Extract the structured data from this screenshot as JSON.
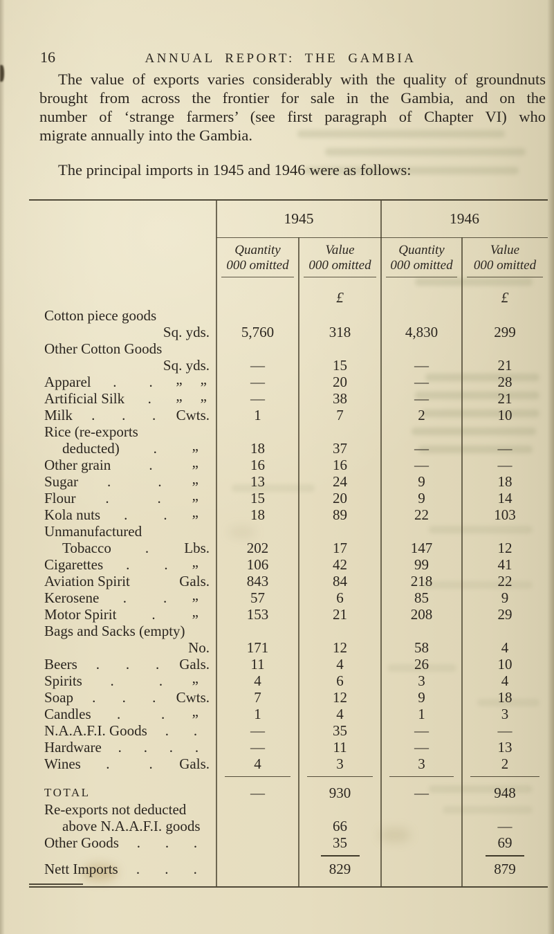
{
  "page": {
    "number": "16",
    "running_title": "ANNUAL REPORT: THE GAMBIA"
  },
  "intro": {
    "lines": [
      "The value of exports varies considerably with the quality of groundnuts",
      "brought from across the frontier for sale in the Gambia, and on the",
      "number of ‘strange farmers’ (see first paragraph of Chapter VI) who",
      "migrate annually into the Gambia."
    ]
  },
  "lead_in": "The principal imports in 1945 and 1946 were as follows:",
  "table": {
    "year_headers": [
      "1945",
      "1946"
    ],
    "col_headers": {
      "quantity": "Quantity",
      "value": "Value",
      "omitted": "000 omitted"
    },
    "currency_symbol": "£",
    "rows": [
      {
        "label": "Cotton piece goods",
        "dots": "",
        "unit": "",
        "indent": false,
        "v": [
          "",
          "",
          "",
          ""
        ]
      },
      {
        "label": "",
        "dots": "",
        "unit": "Sq. yds.",
        "indent": false,
        "v": [
          "5,760",
          "318",
          "4,830",
          "299"
        ]
      },
      {
        "label": "Other Cotton Goods",
        "dots": "",
        "unit": "",
        "indent": false,
        "v": [
          "",
          "",
          "",
          ""
        ]
      },
      {
        "label": "",
        "dots": "",
        "unit": "Sq. yds.",
        "indent": false,
        "v": [
          "—",
          "15",
          "—",
          "21"
        ]
      },
      {
        "label": "Apparel",
        "dots": ". .",
        "unit": "„ „",
        "indent": false,
        "v": [
          "—",
          "20",
          "—",
          "28"
        ]
      },
      {
        "label": "Artificial Silk",
        "dots": ".",
        "unit": "„ „",
        "indent": false,
        "v": [
          "—",
          "38",
          "—",
          "21"
        ]
      },
      {
        "label": "Milk",
        "dots": ". . .",
        "unit": "Cwts.",
        "indent": false,
        "v": [
          "1",
          "7",
          "2",
          "10"
        ]
      },
      {
        "label": "Rice (re-exports",
        "dots": "",
        "unit": "",
        "indent": false,
        "v": [
          "",
          "",
          "",
          ""
        ]
      },
      {
        "label": "deducted)",
        "dots": ".",
        "unit": "„",
        "indent": true,
        "v": [
          "18",
          "37",
          "—",
          "—"
        ]
      },
      {
        "label": "Other grain",
        "dots": ".",
        "unit": "„",
        "indent": false,
        "v": [
          "16",
          "16",
          "—",
          "—"
        ]
      },
      {
        "label": "Sugar",
        "dots": ". .",
        "unit": "„",
        "indent": false,
        "v": [
          "13",
          "24",
          "9",
          "18"
        ]
      },
      {
        "label": "Flour",
        "dots": ". .",
        "unit": "„",
        "indent": false,
        "v": [
          "15",
          "20",
          "9",
          "14"
        ]
      },
      {
        "label": "Kola nuts",
        "dots": ". .",
        "unit": "„",
        "indent": false,
        "v": [
          "18",
          "89",
          "22",
          "103"
        ]
      },
      {
        "label": "Unmanufactured",
        "dots": "",
        "unit": "",
        "indent": false,
        "v": [
          "",
          "",
          "",
          ""
        ]
      },
      {
        "label": "Tobacco",
        "dots": ".",
        "unit": "Lbs.",
        "indent": true,
        "v": [
          "202",
          "17",
          "147",
          "12"
        ]
      },
      {
        "label": "Cigarettes",
        "dots": ". .",
        "unit": "„",
        "indent": false,
        "v": [
          "106",
          "42",
          "99",
          "41"
        ]
      },
      {
        "label": "Aviation Spirit",
        "dots": "",
        "unit": "Gals.",
        "indent": false,
        "v": [
          "843",
          "84",
          "218",
          "22"
        ]
      },
      {
        "label": "Kerosene",
        "dots": ". .",
        "unit": "„",
        "indent": false,
        "v": [
          "57",
          "6",
          "85",
          "9"
        ]
      },
      {
        "label": "Motor Spirit",
        "dots": ".",
        "unit": "„",
        "indent": false,
        "v": [
          "153",
          "21",
          "208",
          "29"
        ]
      },
      {
        "label": "Bags and Sacks (empty)",
        "dots": "",
        "unit": "",
        "indent": false,
        "v": [
          "",
          "",
          "",
          ""
        ]
      },
      {
        "label": "",
        "dots": "",
        "unit": "No.",
        "indent": false,
        "v": [
          "171",
          "12",
          "58",
          "4"
        ]
      },
      {
        "label": "Beers",
        "dots": ". . .",
        "unit": "Gals.",
        "indent": false,
        "v": [
          "11",
          "4",
          "26",
          "10"
        ]
      },
      {
        "label": "Spirits",
        "dots": ". .",
        "unit": "„",
        "indent": false,
        "v": [
          "4",
          "6",
          "3",
          "4"
        ]
      },
      {
        "label": "Soap",
        "dots": ". . .",
        "unit": "Cwts.",
        "indent": false,
        "v": [
          "7",
          "12",
          "9",
          "18"
        ]
      },
      {
        "label": "Candles",
        "dots": ". .",
        "unit": "„",
        "indent": false,
        "v": [
          "1",
          "4",
          "1",
          "3"
        ]
      },
      {
        "label": "N.A.A.F.I. Goods",
        "dots": ". .",
        "unit": "",
        "indent": false,
        "v": [
          "—",
          "35",
          "—",
          "—"
        ]
      },
      {
        "label": "Hardware",
        "dots": ". . . .",
        "unit": "",
        "indent": false,
        "v": [
          "—",
          "11",
          "—",
          "13"
        ]
      },
      {
        "label": "Wines",
        "dots": ". .",
        "unit": "Gals.",
        "indent": false,
        "v": [
          "4",
          "3",
          "3",
          "2"
        ]
      }
    ],
    "summary_rows": [
      {
        "type": "rule_all"
      },
      {
        "type": "total",
        "label": "TOTAL",
        "dots": "",
        "unit": "",
        "indent": false,
        "v": [
          "—",
          "930",
          "—",
          "948"
        ]
      },
      {
        "type": "item",
        "label": "Re-exports not deducted",
        "dots": "",
        "unit": "",
        "indent": false,
        "v": [
          "",
          "",
          "",
          ""
        ]
      },
      {
        "type": "item",
        "label": "above N.A.A.F.I. goods",
        "dots": "",
        "unit": "",
        "indent": true,
        "v": [
          "",
          "66",
          "",
          "—"
        ]
      },
      {
        "type": "item",
        "label": "Other Goods",
        "dots": ". . .",
        "unit": "",
        "indent": false,
        "v": [
          "",
          "35",
          "",
          "69"
        ]
      },
      {
        "type": "rule_values"
      },
      {
        "type": "item",
        "label": "Nett Imports",
        "dots": ". . .",
        "unit": "",
        "indent": false,
        "v": [
          "",
          "829",
          "",
          "879"
        ]
      }
    ]
  },
  "colors": {
    "paper": "#e4dbbd",
    "ink": "#2b2620",
    "rule": "#39331f",
    "bleed_through": "#888a64"
  }
}
